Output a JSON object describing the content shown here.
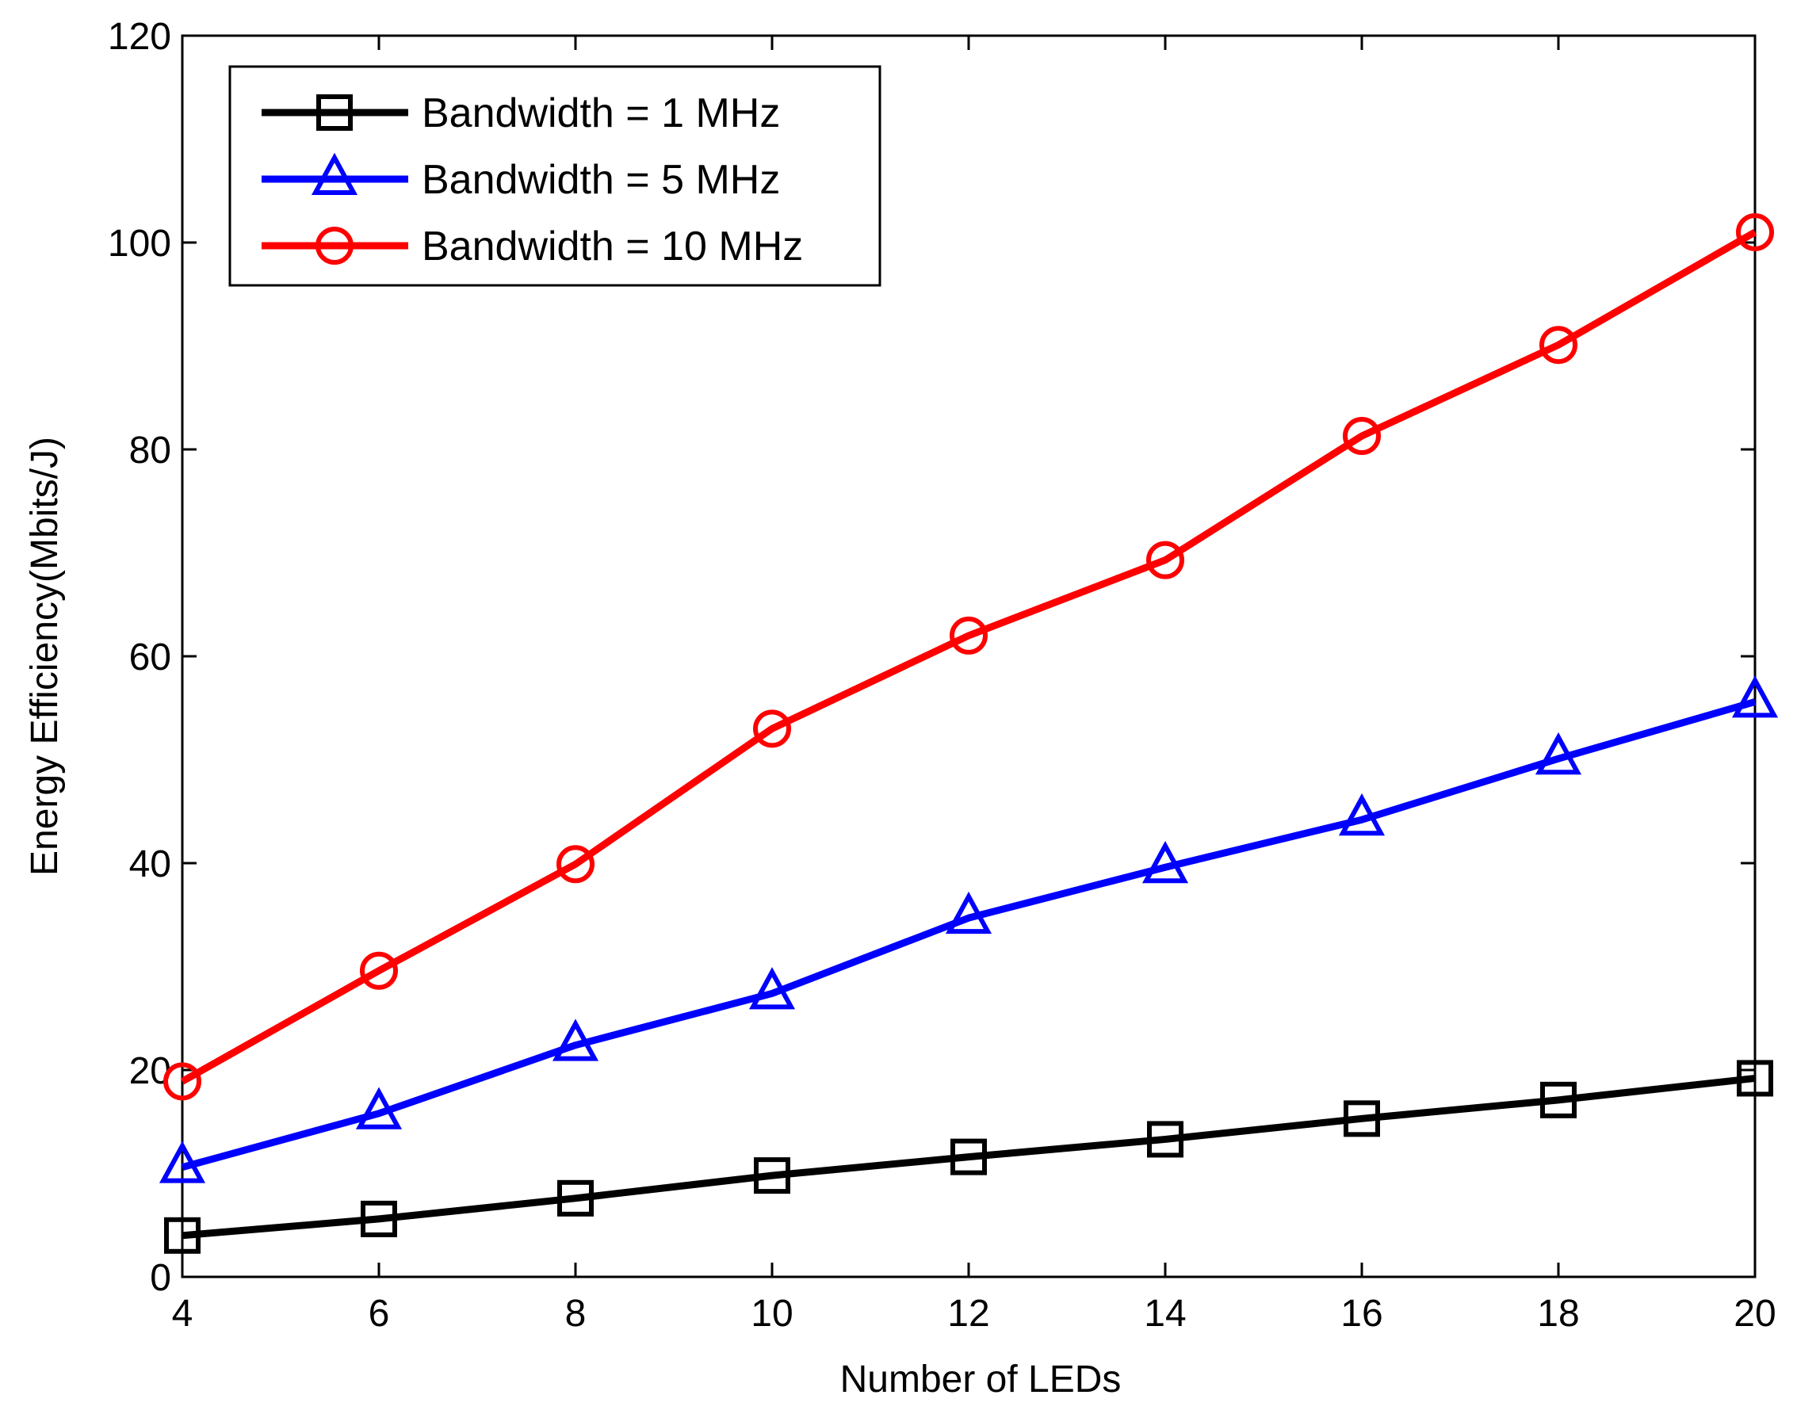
{
  "chart_data": {
    "type": "line",
    "xlabel": "Number of LEDs",
    "ylabel": "Energy Efficiency(Mbits/J)",
    "xlim": [
      4,
      20
    ],
    "ylim": [
      0,
      120
    ],
    "xticks": [
      4,
      6,
      8,
      10,
      12,
      14,
      16,
      18,
      20
    ],
    "yticks": [
      0,
      20,
      40,
      60,
      80,
      100,
      120
    ],
    "grid": false,
    "legend_position": "top-left",
    "x": [
      4,
      6,
      8,
      10,
      12,
      14,
      16,
      18,
      20
    ],
    "series": [
      {
        "name": "Bandwidth = 1 MHz",
        "color": "#000000",
        "marker": "square",
        "values": [
          4,
          5.6,
          7.6,
          9.8,
          11.6,
          13.3,
          15.3,
          17.1,
          19.2
        ]
      },
      {
        "name": "Bandwidth = 5 MHz",
        "color": "#0000ff",
        "marker": "triangle",
        "values": [
          10.6,
          15.8,
          22.4,
          27.4,
          34.7,
          39.6,
          44.2,
          50.1,
          55.6
        ]
      },
      {
        "name": "Bandwidth = 10 MHz",
        "color": "#ff0000",
        "marker": "circle",
        "values": [
          18.9,
          29.6,
          39.9,
          53,
          62,
          69.3,
          81.3,
          90.1,
          101
        ]
      }
    ]
  }
}
